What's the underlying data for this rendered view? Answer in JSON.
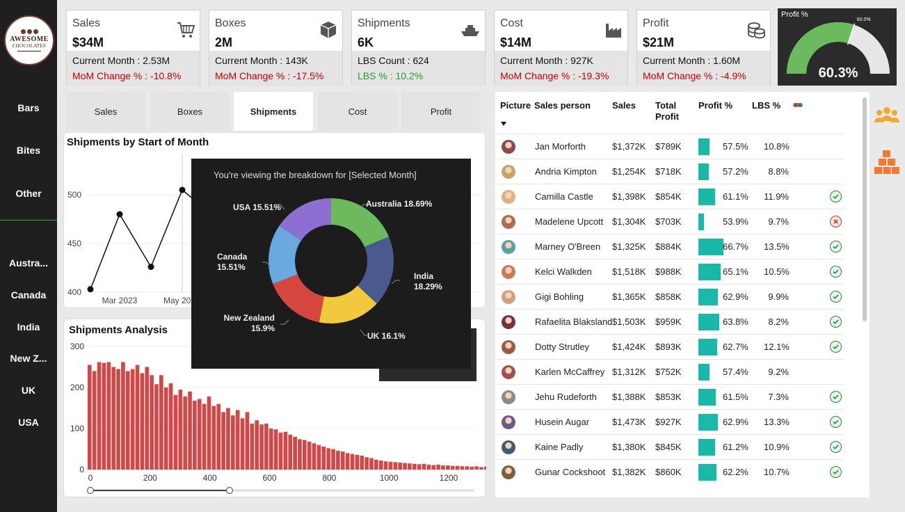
{
  "brand": {
    "logo_line1": "AWESOME",
    "logo_line2": "CHOCOLATES"
  },
  "sidebar": {
    "products": [
      "Bars",
      "Bites",
      "Other"
    ],
    "countries": [
      "Austra...",
      "Canada",
      "India",
      "New Z...",
      "UK",
      "USA"
    ]
  },
  "kpis": [
    {
      "name": "Sales",
      "value": "$34M",
      "icon": "shopping-cart-icon",
      "line1": "Current Month : 2.53M",
      "line2": "MoM Change % : -10.8%",
      "line2_good": false
    },
    {
      "name": "Boxes",
      "value": "2M",
      "icon": "box-icon",
      "line1": "Current Month : 143K",
      "line2": "MoM Change % : -17.5%",
      "line2_good": false
    },
    {
      "name": "Shipments",
      "value": "6K",
      "icon": "ship-icon",
      "line1": "LBS Count : 624",
      "line2": "LBS % : 10.2%",
      "line2_good": true
    },
    {
      "name": "Cost",
      "value": "$14M",
      "icon": "factory-icon",
      "line1": "Current Month : 927K",
      "line2": "MoM Change % : -19.3%",
      "line2_good": false
    },
    {
      "name": "Profit",
      "value": "$21M",
      "icon": "coins-icon",
      "line1": "Current Month : 1.60M",
      "line2": "MoM Change % : -4.9%",
      "line2_good": false
    }
  ],
  "gauge": {
    "title": "Profit %",
    "value": 0.603,
    "value_label": "60.3%",
    "target_label": "60.0%",
    "target": 0.6
  },
  "tabs": [
    {
      "label": "Sales",
      "active": false
    },
    {
      "label": "Boxes",
      "active": false
    },
    {
      "label": "Shipments",
      "active": true
    },
    {
      "label": "Cost",
      "active": false
    },
    {
      "label": "Profit",
      "active": false
    }
  ],
  "line_chart": {
    "title": "Shipments by Start of Month",
    "y_ticks": [
      "500",
      "450",
      "400"
    ],
    "x_ticks": [
      "Mar 2023",
      "May 20"
    ],
    "y_min": 390,
    "y_max": 540,
    "values": [
      403,
      480,
      426,
      505,
      480
    ]
  },
  "histogram": {
    "title": "Shipments Analysis",
    "y_ticks": [
      "300",
      "200",
      "100",
      "0"
    ],
    "x_ticks": [
      "0",
      "200",
      "400",
      "600",
      "800",
      "1000",
      "1200"
    ],
    "x_min": 0,
    "x_max": 1290,
    "y_max": 300,
    "bar_width": 16,
    "values": [
      255,
      240,
      262,
      260,
      262,
      250,
      245,
      262,
      240,
      245,
      255,
      235,
      250,
      230,
      208,
      230,
      200,
      210,
      182,
      195,
      178,
      190,
      168,
      172,
      160,
      178,
      155,
      160,
      140,
      150,
      132,
      145,
      125,
      140,
      112,
      120,
      110,
      112,
      100,
      98,
      90,
      92,
      85,
      80,
      74,
      72,
      68,
      64,
      60,
      56,
      52,
      50,
      46,
      44,
      40,
      38,
      36,
      34,
      30,
      28,
      24,
      22,
      20,
      19,
      18,
      17,
      16,
      15,
      14,
      13,
      14,
      12,
      11,
      12,
      10,
      10,
      9,
      9,
      8,
      8,
      7,
      8,
      6,
      7,
      6,
      6
    ]
  },
  "tooltip": {
    "message": "You're viewing the breakdown for [Selected Month]",
    "slices": [
      {
        "label": "Australia 18.69%",
        "value": 18.69,
        "color": "#6bbb5e"
      },
      {
        "label": "India 18.29%",
        "value": 18.29,
        "color": "#4a5a8f"
      },
      {
        "label": "UK 16.1%",
        "value": 16.1,
        "color": "#f0c93c"
      },
      {
        "label": "New Zealand 15.9%",
        "value": 15.9,
        "color": "#d6483f"
      },
      {
        "label": "Canada 15.51%",
        "value": 15.51,
        "color": "#6aa8e0"
      },
      {
        "label": "USA 15.51%",
        "value": 15.51,
        "color": "#8c6fd1"
      }
    ]
  },
  "table": {
    "headers": {
      "picture": "Picture",
      "sales_person": "Sales person",
      "sales": "Sales",
      "total_profit": "Total Profit",
      "profit_pct": "Profit %",
      "lbs_pct": "LBS %"
    },
    "rows": [
      {
        "name": "Jan Morforth",
        "sales": "$1,372K",
        "profit": "$789K",
        "pct": "57.5%",
        "pct_value": 57.5,
        "lbs": "10.8%",
        "status": "none",
        "color": "#8b4a4a"
      },
      {
        "name": "Andria Kimpton",
        "sales": "$1,254K",
        "profit": "$718K",
        "pct": "57.2%",
        "pct_value": 57.2,
        "lbs": "8.8%",
        "status": "none",
        "color": "#c9a36b"
      },
      {
        "name": "Camilla Castle",
        "sales": "$1,398K",
        "profit": "$854K",
        "pct": "61.1%",
        "pct_value": 61.1,
        "lbs": "11.9%",
        "status": "ok",
        "color": "#e0b080"
      },
      {
        "name": "Madelene Upcott",
        "sales": "$1,304K",
        "profit": "$703K",
        "pct": "53.9%",
        "pct_value": 53.9,
        "lbs": "9.7%",
        "status": "bad",
        "color": "#b06a50"
      },
      {
        "name": "Marney O'Breen",
        "sales": "$1,325K",
        "profit": "$884K",
        "pct": "66.7%",
        "pct_value": 66.7,
        "lbs": "13.5%",
        "status": "ok",
        "color": "#5aa0a0"
      },
      {
        "name": "Kelci Walkden",
        "sales": "$1,518K",
        "profit": "$988K",
        "pct": "65.1%",
        "pct_value": 65.1,
        "lbs": "10.5%",
        "status": "ok",
        "color": "#c87a5a"
      },
      {
        "name": "Gigi Bohling",
        "sales": "$1,365K",
        "profit": "$858K",
        "pct": "62.9%",
        "pct_value": 62.9,
        "lbs": "9.9%",
        "status": "ok",
        "color": "#d0a080"
      },
      {
        "name": "Rafaelita Blaksland",
        "sales": "$1,503K",
        "profit": "$959K",
        "pct": "63.8%",
        "pct_value": 63.8,
        "lbs": "8.2%",
        "status": "ok",
        "color": "#7a3040"
      },
      {
        "name": "Dotty Strutley",
        "sales": "$1,424K",
        "profit": "$893K",
        "pct": "62.7%",
        "pct_value": 62.7,
        "lbs": "12.1%",
        "status": "ok",
        "color": "#9a5a4a"
      },
      {
        "name": "Karlen McCaffrey",
        "sales": "$1,312K",
        "profit": "$752K",
        "pct": "57.4%",
        "pct_value": 57.4,
        "lbs": "9.2%",
        "status": "none",
        "color": "#a05050"
      },
      {
        "name": "Jehu Rudeforth",
        "sales": "$1,388K",
        "profit": "$853K",
        "pct": "61.5%",
        "pct_value": 61.5,
        "lbs": "7.3%",
        "status": "ok",
        "color": "#8a8a8a"
      },
      {
        "name": "Husein Augar",
        "sales": "$1,473K",
        "profit": "$927K",
        "pct": "62.9%",
        "pct_value": 62.9,
        "lbs": "13.3%",
        "status": "ok",
        "color": "#6a5a8a"
      },
      {
        "name": "Kaine Padly",
        "sales": "$1,380K",
        "profit": "$845K",
        "pct": "61.2%",
        "pct_value": 61.2,
        "lbs": "10.9%",
        "status": "ok",
        "color": "#405a7a"
      },
      {
        "name": "Gunar Cockshoot",
        "sales": "$1,382K",
        "profit": "$860K",
        "pct": "62.2%",
        "pct_value": 62.2,
        "lbs": "10.7%",
        "status": "ok",
        "color": "#7a6040"
      }
    ]
  },
  "colors": {
    "sidebar": "#1f1f1f",
    "bar": "#1ab8a8",
    "hist": "#d04848",
    "gauge_fill": "#6bbb5e",
    "bad": "#c00000",
    "good": "#2a9a2a"
  }
}
